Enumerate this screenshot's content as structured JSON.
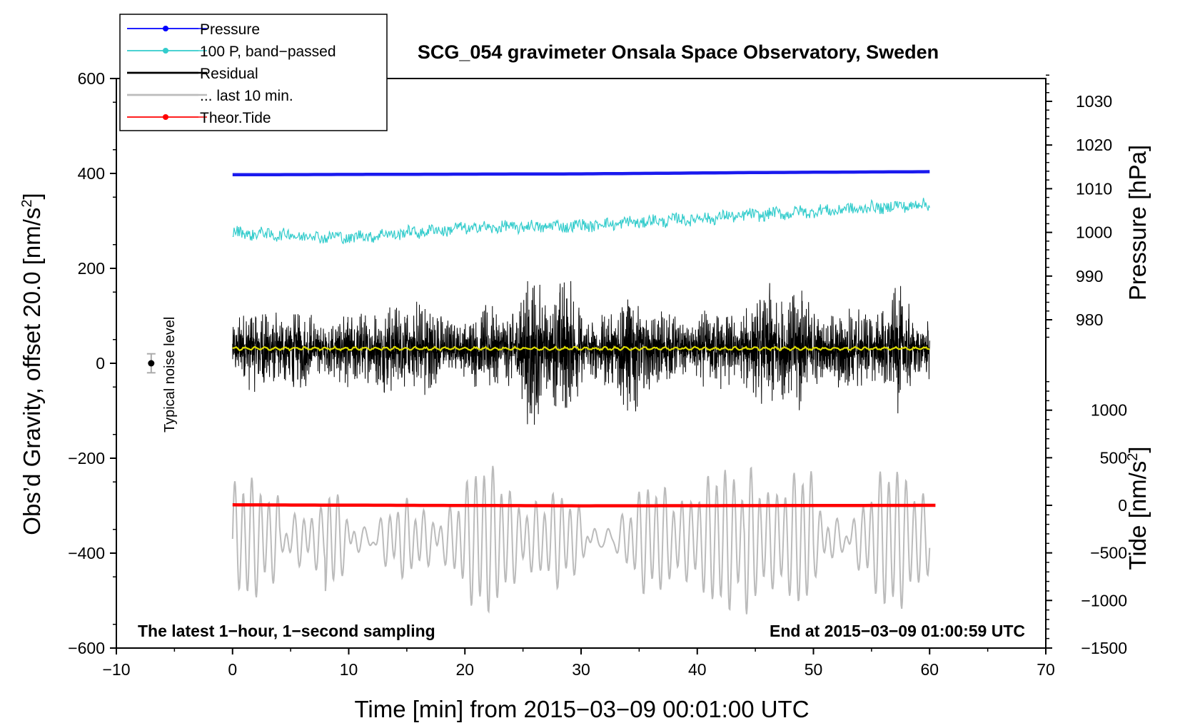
{
  "chart_data": {
    "type": "line",
    "title": "SCG_054 gravimeter Onsala Space Observatory, Sweden",
    "xlabel": "Time [min] from 2015−03−09 00:01:00 UTC",
    "ylabel_left": "Obs’d Gravity, offset 20.0 [nm/s",
    "ylabel_left_sup": "2",
    "ylabel_left_end": "]",
    "ylabel_right_pressure": "Pressure [hPa]",
    "ylabel_right_tide": "Tide [nm/s",
    "ylabel_right_tide_sup": "2",
    "ylabel_right_tide_end": "]",
    "xlim": [
      -10,
      70
    ],
    "ylim_left": [
      -600,
      600
    ],
    "pressure_lim": [
      973.5,
      1036.5
    ],
    "tide_lim": [
      -1500,
      1500
    ],
    "x_ticks": [
      "−10",
      "0",
      "10",
      "20",
      "30",
      "40",
      "50",
      "60",
      "70"
    ],
    "x_tick_values": [
      -10,
      0,
      10,
      20,
      30,
      40,
      50,
      60,
      70
    ],
    "y_left_ticks": [
      "600",
      "400",
      "200",
      "0",
      "−200",
      "−400",
      "−600"
    ],
    "y_left_tick_values": [
      600,
      400,
      200,
      0,
      -200,
      -400,
      -600
    ],
    "pressure_ticks": [
      "1030",
      "1020",
      "1010",
      "1000",
      "990",
      "980"
    ],
    "pressure_tick_values": [
      1030,
      1020,
      1010,
      1000,
      990,
      980
    ],
    "tide_ticks": [
      "1000",
      "500",
      "0",
      "−500",
      "−1000",
      "−1500"
    ],
    "tide_tick_values": [
      1000,
      500,
      0,
      -500,
      -1000,
      -1500
    ],
    "annotation_left": "The latest 1−hour, 1−second sampling",
    "annotation_right": "End at 2015−03−09 01:00:59 UTC",
    "noise_label": "Typical noise level",
    "noise_marker": {
      "x": -7,
      "y": 0,
      "err": 20
    },
    "legend": [
      {
        "label": "Pressure",
        "color": "#0000ff",
        "marker": true
      },
      {
        "label": "100 P, band−passed",
        "color": "#33cccc",
        "marker": true
      },
      {
        "label": "Residual",
        "color": "#000000",
        "marker": false
      },
      {
        "label": "... last 10 min.",
        "color": "#bbbbbb",
        "marker": false
      },
      {
        "label": "Theor.Tide",
        "color": "#ff0000",
        "marker": true
      }
    ],
    "series": [
      {
        "name": "Pressure",
        "color": "#1a1aee",
        "units": "hPa",
        "x": [
          0,
          15,
          30,
          45,
          60
        ],
        "values": [
          1013.2,
          1013.3,
          1013.4,
          1013.7,
          1013.9
        ]
      },
      {
        "name": "100 P, band−passed",
        "color": "#33cccc",
        "units": "nm/s2",
        "x": [
          0,
          10,
          20,
          30,
          40,
          50,
          60
        ],
        "values": [
          275,
          265,
          285,
          290,
          305,
          320,
          335
        ],
        "noise_amplitude": 12
      },
      {
        "name": "Residual",
        "color": "#000000",
        "units": "nm/s2",
        "x": [
          0,
          60
        ],
        "values": [
          30,
          30
        ],
        "noise_amplitude": 230,
        "min": -175,
        "max": 245
      },
      {
        "name": "Residual (smoothed)",
        "color": "#dddd00",
        "units": "nm/s2",
        "x": [
          0,
          60
        ],
        "values": [
          31,
          31
        ]
      },
      {
        "name": "... last 10 min.",
        "color": "#bbbbbb",
        "units": "nm/s2",
        "x": [
          0,
          60
        ],
        "values": [
          -370,
          -370
        ],
        "min": -535,
        "max": -200
      },
      {
        "name": "Theor.Tide",
        "color": "#ff0000",
        "units": "nm/s2",
        "x": [
          0,
          15,
          30,
          45,
          60.5
        ],
        "values": [
          5,
          0,
          -5,
          -3,
          0
        ]
      }
    ]
  }
}
